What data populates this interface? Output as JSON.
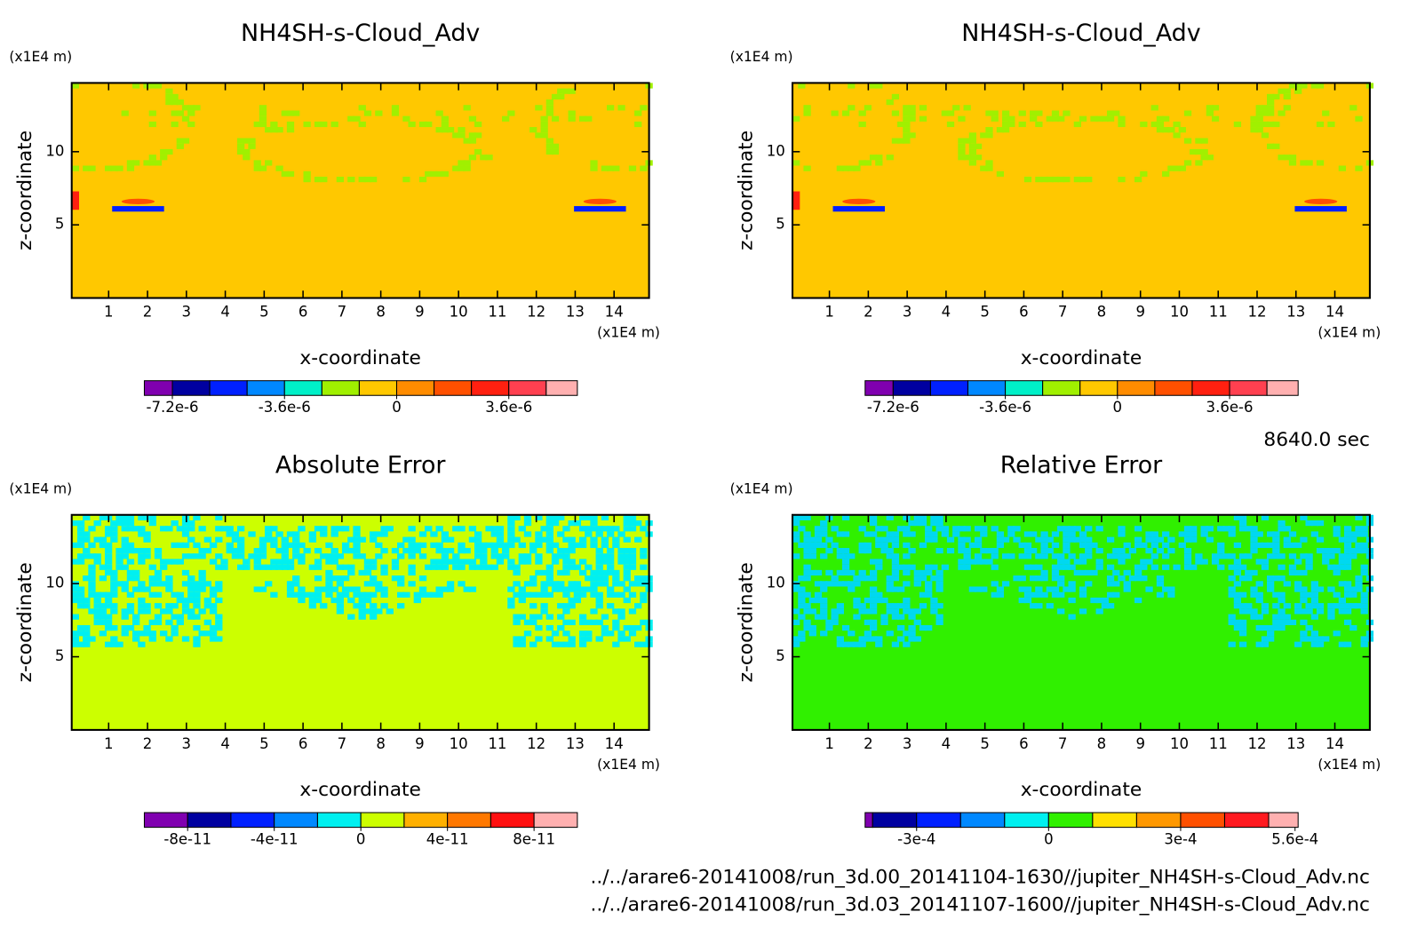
{
  "chart_data": [
    {
      "type": "contour",
      "title": "NH4SH-s-Cloud_Adv",
      "xlabel": "x-coordinate",
      "ylabel": "z-coordinate",
      "xunit": "(x1E4 m)",
      "yunit": "(x1E4 m)",
      "xlim": [
        0.05,
        14.9
      ],
      "xticks": [
        1,
        2,
        3,
        4,
        5,
        6,
        7,
        8,
        9,
        10,
        11,
        12,
        13,
        14
      ],
      "ylim": [
        0,
        14.7
      ],
      "yticks": [
        5,
        10
      ],
      "field_color": "#ffc800",
      "pattern_color": "#a0f000",
      "colorbar": {
        "bounds": [
          -8.1e-06,
          -7.2e-06,
          -6e-06,
          -4.8e-06,
          -3.6e-06,
          -2.4e-06,
          -1.2e-06,
          0,
          1.2e-06,
          2.4e-06,
          3.6e-06,
          4.8e-06,
          5.8e-06
        ],
        "colors": [
          "#8000b0",
          "#0000a0",
          "#0020ff",
          "#0088ff",
          "#00f0c8",
          "#a0f000",
          "#ffc800",
          "#ff8c00",
          "#ff5000",
          "#ff2010",
          "#ff4050",
          "#ffb0b0"
        ],
        "ticks": [
          {
            "value": -7.2e-06,
            "label": "-7.2e-6"
          },
          {
            "value": -3.6e-06,
            "label": "-3.6e-6"
          },
          0,
          {
            "value": 3.6e-06,
            "label": "3.6e-6"
          }
        ]
      }
    },
    {
      "type": "contour",
      "title": "NH4SH-s-Cloud_Adv",
      "xlabel": "x-coordinate",
      "ylabel": "z-coordinate",
      "xunit": "(x1E4 m)",
      "yunit": "(x1E4 m)",
      "xlim": [
        0.05,
        14.9
      ],
      "xticks": [
        1,
        2,
        3,
        4,
        5,
        6,
        7,
        8,
        9,
        10,
        11,
        12,
        13,
        14
      ],
      "ylim": [
        0,
        14.7
      ],
      "yticks": [
        5,
        10
      ],
      "field_color": "#ffc800",
      "pattern_color": "#a0f000",
      "colorbar": {
        "bounds": [
          -8.1e-06,
          -7.2e-06,
          -6e-06,
          -4.8e-06,
          -3.6e-06,
          -2.4e-06,
          -1.2e-06,
          0,
          1.2e-06,
          2.4e-06,
          3.6e-06,
          4.8e-06,
          5.8e-06
        ],
        "colors": [
          "#8000b0",
          "#0000a0",
          "#0020ff",
          "#0088ff",
          "#00f0c8",
          "#a0f000",
          "#ffc800",
          "#ff8c00",
          "#ff5000",
          "#ff2010",
          "#ff4050",
          "#ffb0b0"
        ],
        "ticks": [
          {
            "value": -7.2e-06,
            "label": "-7.2e-6"
          },
          {
            "value": -3.6e-06,
            "label": "-3.6e-6"
          },
          0,
          {
            "value": 3.6e-06,
            "label": "3.6e-6"
          }
        ]
      }
    },
    {
      "type": "contour",
      "title": "Absolute Error",
      "xlabel": "x-coordinate",
      "ylabel": "z-coordinate",
      "xunit": "(x1E4 m)",
      "yunit": "(x1E4 m)",
      "xlim": [
        0.05,
        14.9
      ],
      "xticks": [
        1,
        2,
        3,
        4,
        5,
        6,
        7,
        8,
        9,
        10,
        11,
        12,
        13,
        14
      ],
      "ylim": [
        0,
        14.7
      ],
      "yticks": [
        5,
        10
      ],
      "field_color": "#ccff00",
      "pattern_color": "#00f0f0",
      "colorbar": {
        "bounds": [
          -1e-10,
          -8e-11,
          -6e-11,
          -4e-11,
          -2e-11,
          0,
          2e-11,
          4e-11,
          6e-11,
          8e-11,
          1e-10
        ],
        "colors": [
          "#8000b0",
          "#0000a0",
          "#0020ff",
          "#0088ff",
          "#00f0f0",
          "#ccff00",
          "#ffb000",
          "#ff7800",
          "#ff1010",
          "#ffb0b0"
        ],
        "ticks": [
          {
            "value": -8e-11,
            "label": "-8e-11"
          },
          {
            "value": -4e-11,
            "label": "-4e-11"
          },
          0,
          {
            "value": 4e-11,
            "label": "4e-11"
          },
          {
            "value": 8e-11,
            "label": "8e-11"
          }
        ]
      }
    },
    {
      "type": "contour",
      "title": "Relative Error",
      "xlabel": "x-coordinate",
      "ylabel": "z-coordinate",
      "xunit": "(x1E4 m)",
      "yunit": "(x1E4 m)",
      "xlim": [
        0.05,
        14.9
      ],
      "xticks": [
        1,
        2,
        3,
        4,
        5,
        6,
        7,
        8,
        9,
        10,
        11,
        12,
        13,
        14
      ],
      "ylim": [
        0,
        14.7
      ],
      "yticks": [
        5,
        10
      ],
      "field_color": "#30f000",
      "pattern_color": "#00d8f0",
      "colorbar": {
        "bounds": [
          -0.000417,
          -0.0004,
          -0.0003,
          -0.0002,
          -0.0001,
          0,
          0.0001,
          0.0002,
          0.0003,
          0.0004,
          0.0005,
          0.000567
        ],
        "colors": [
          "#8000b0",
          "#0000a0",
          "#0020ff",
          "#0088ff",
          "#00f0f0",
          "#30f000",
          "#ffe000",
          "#ff9800",
          "#ff5000",
          "#ff1a20",
          "#ffb0b0"
        ],
        "ticks": [
          {
            "value": -0.0003,
            "label": "-3e-4"
          },
          0,
          {
            "value": 0.0003,
            "label": "3e-4"
          },
          {
            "value": 0.00056,
            "label": "5.6e-4"
          }
        ]
      }
    }
  ],
  "time_label": "8640.0 sec",
  "files": [
    "../../arare6-20141008/run_3d.00_20141104-1630//jupiter_NH4SH-s-Cloud_Adv.nc",
    "../../arare6-20141008/run_3d.03_20141107-1600//jupiter_NH4SH-s-Cloud_Adv.nc"
  ]
}
